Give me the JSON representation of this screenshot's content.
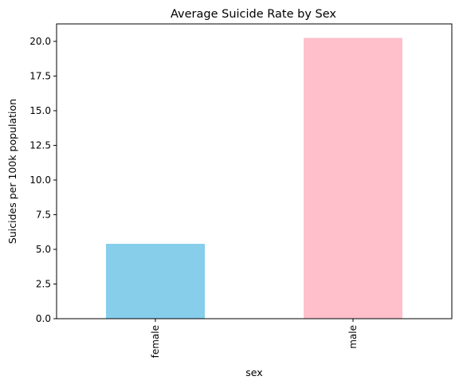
{
  "chart_data": {
    "type": "bar",
    "title": "Average Suicide Rate by Sex",
    "xlabel": "sex",
    "ylabel": "Suicides per 100k population",
    "categories": [
      "female",
      "male"
    ],
    "values": [
      5.4,
      20.25
    ],
    "colors": [
      "#87ceeb",
      "#ffc0cb"
    ],
    "ylim": [
      0,
      21.26
    ],
    "yticks": [
      0.0,
      2.5,
      5.0,
      7.5,
      10.0,
      12.5,
      15.0,
      17.5,
      20.0
    ],
    "ytick_labels": [
      "0.0",
      "2.5",
      "5.0",
      "7.5",
      "10.0",
      "12.5",
      "15.0",
      "17.5",
      "20.0"
    ],
    "grid": false,
    "legend": "none"
  }
}
